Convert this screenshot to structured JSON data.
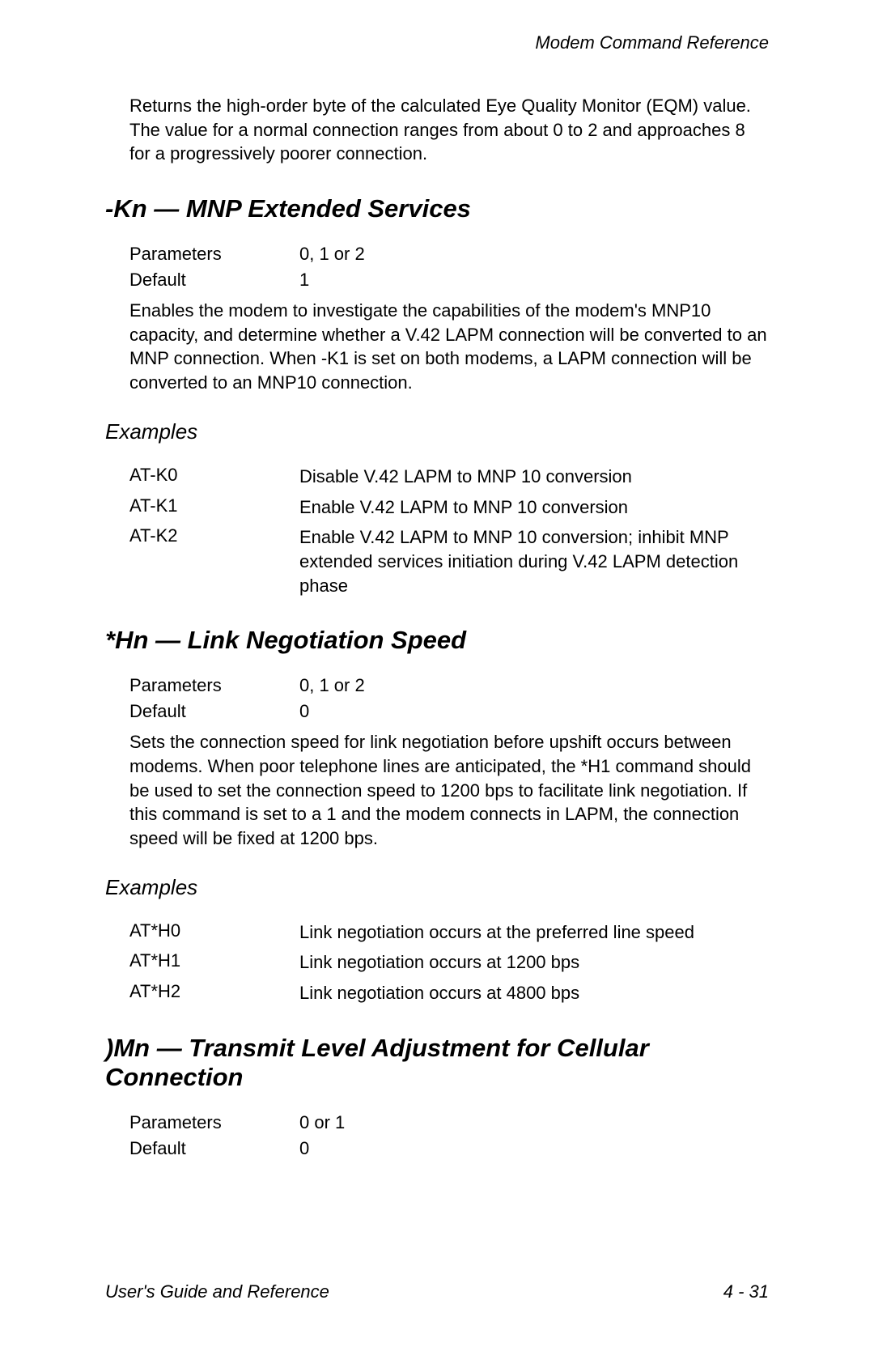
{
  "header": "Modem Command Reference",
  "intro": "Returns the high-order byte of the calculated Eye Quality Monitor (EQM) value. The value for a normal connection ranges from about 0 to 2 and approaches 8 for a progressively poorer connection.",
  "section1": {
    "title": "-Kn — MNP Extended Services",
    "params_label": "Parameters",
    "params_value": "0, 1 or 2",
    "default_label": "Default",
    "default_value": "1",
    "description": "Enables the modem to investigate the capabilities of the modem's MNP10 capacity, and determine whether a V.42 LAPM connection will be converted to an MNP connection. When -K1 is set on both modems, a LAPM connection will be converted to an MNP10 connection.",
    "examples_label": "Examples",
    "examples": [
      {
        "cmd": "AT-K0",
        "desc": "Disable V.42 LAPM to MNP 10 conversion"
      },
      {
        "cmd": "AT-K1",
        "desc": "Enable V.42 LAPM to MNP 10 conversion"
      },
      {
        "cmd": "AT-K2",
        "desc": "Enable V.42 LAPM to MNP 10 conversion; inhibit MNP extended services initiation during V.42 LAPM detection phase"
      }
    ]
  },
  "section2": {
    "title": "*Hn — Link Negotiation Speed",
    "params_label": "Parameters",
    "params_value": "0, 1 or 2",
    "default_label": "Default",
    "default_value": "0",
    "description": "Sets the connection speed for link negotiation before upshift occurs between modems. When poor telephone lines are anticipated, the *H1 command should be used to set the connection speed to 1200 bps to facilitate link negotiation. If this command is set to a 1 and the modem connects in LAPM, the connection speed will be fixed at 1200 bps.",
    "examples_label": "Examples",
    "examples": [
      {
        "cmd": "AT*H0",
        "desc": "Link negotiation occurs at the preferred line speed"
      },
      {
        "cmd": "AT*H1",
        "desc": "Link negotiation occurs at 1200 bps"
      },
      {
        "cmd": "AT*H2",
        "desc": "Link negotiation occurs at 4800 bps"
      }
    ]
  },
  "section3": {
    "title": ")Mn — Transmit Level Adjustment for Cellular Connection",
    "params_label": "Parameters",
    "params_value": "0 or 1",
    "default_label": "Default",
    "default_value": "0"
  },
  "footer_left": "User's Guide and Reference",
  "footer_right": "4 - 31"
}
